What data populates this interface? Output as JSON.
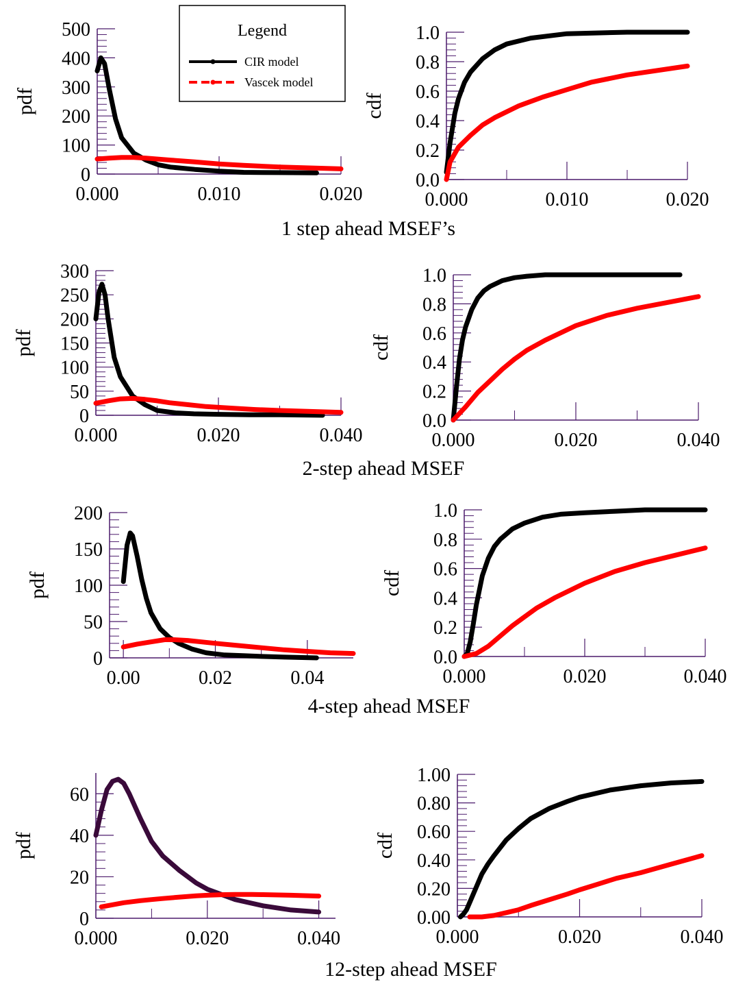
{
  "legend": {
    "title": "Legend",
    "entries": [
      {
        "label": "CIR model",
        "color": "#000000",
        "style": "solid"
      },
      {
        "label": "Vascek model",
        "color": "#ff0000",
        "style": "dashed"
      }
    ]
  },
  "row_labels": [
    "1 step ahead MSEF’s",
    "2-step ahead MSEF",
    "4-step ahead MSEF",
    "12-step ahead MSEF"
  ],
  "colors": {
    "cir": "#000000",
    "cir_12step": "#3a0a3a",
    "vasicek": "#ff0000",
    "axis": "#4b1a6b"
  },
  "chart_data": [
    {
      "type": "line",
      "ylabel": "pdf",
      "xlim": [
        0,
        0.02
      ],
      "ylim": [
        0,
        500
      ],
      "xticks": [
        "0.000",
        "0.010",
        "0.020"
      ],
      "xtick_values": [
        0,
        0.01,
        0.02
      ],
      "yticks": [
        "0",
        "100",
        "200",
        "300",
        "400",
        "500"
      ],
      "ytick_values": [
        0,
        100,
        200,
        300,
        400,
        500
      ],
      "series": [
        {
          "name": "CIR model",
          "x": [
            0,
            0.0003,
            0.0006,
            0.001,
            0.0015,
            0.002,
            0.003,
            0.004,
            0.005,
            0.006,
            0.008,
            0.01,
            0.012,
            0.015,
            0.018
          ],
          "y": [
            355,
            400,
            380,
            290,
            190,
            125,
            72,
            48,
            32,
            24,
            16,
            10,
            6,
            5,
            4
          ]
        },
        {
          "name": "Vascek model",
          "x": [
            0,
            0.001,
            0.002,
            0.003,
            0.004,
            0.006,
            0.008,
            0.01,
            0.012,
            0.015,
            0.02
          ],
          "y": [
            52,
            55,
            57,
            57,
            55,
            48,
            42,
            35,
            30,
            24,
            18
          ]
        }
      ]
    },
    {
      "type": "line",
      "ylabel": "cdf",
      "xlim": [
        0,
        0.02
      ],
      "ylim": [
        0,
        1
      ],
      "xticks": [
        "0.000",
        "0.010",
        "0.020"
      ],
      "xtick_values": [
        0,
        0.01,
        0.02
      ],
      "yticks": [
        "0.0",
        "0.2",
        "0.4",
        "0.6",
        "0.8",
        "1.0"
      ],
      "ytick_values": [
        0,
        0.2,
        0.4,
        0.6,
        0.8,
        1.0
      ],
      "series": [
        {
          "name": "CIR model",
          "x": [
            0,
            0.0003,
            0.0007,
            0.001,
            0.0015,
            0.002,
            0.003,
            0.004,
            0.005,
            0.007,
            0.01,
            0.015,
            0.02
          ],
          "y": [
            0.05,
            0.25,
            0.45,
            0.55,
            0.66,
            0.73,
            0.82,
            0.88,
            0.92,
            0.96,
            0.99,
            1.0,
            1.0
          ]
        },
        {
          "name": "Vascek model",
          "x": [
            0,
            0.0003,
            0.001,
            0.002,
            0.003,
            0.004,
            0.006,
            0.008,
            0.01,
            0.012,
            0.015,
            0.02
          ],
          "y": [
            0.0,
            0.12,
            0.22,
            0.3,
            0.37,
            0.42,
            0.5,
            0.56,
            0.61,
            0.66,
            0.71,
            0.77
          ]
        }
      ]
    },
    {
      "type": "line",
      "ylabel": "pdf",
      "xlim": [
        0,
        0.04
      ],
      "ylim": [
        0,
        300
      ],
      "xticks": [
        "0.000",
        "0.020",
        "0.040"
      ],
      "xtick_values": [
        0,
        0.02,
        0.04
      ],
      "yticks": [
        "0",
        "50",
        "100",
        "150",
        "200",
        "250",
        "300"
      ],
      "ytick_values": [
        0,
        50,
        100,
        150,
        200,
        250,
        300
      ],
      "series": [
        {
          "name": "CIR model",
          "x": [
            0,
            0.0005,
            0.001,
            0.0015,
            0.002,
            0.003,
            0.004,
            0.006,
            0.008,
            0.01,
            0.013,
            0.016,
            0.02,
            0.025,
            0.03,
            0.037
          ],
          "y": [
            200,
            255,
            272,
            250,
            200,
            120,
            80,
            40,
            22,
            10,
            5,
            3,
            2,
            1,
            1,
            0
          ]
        },
        {
          "name": "Vascek model",
          "x": [
            0,
            0.002,
            0.004,
            0.006,
            0.008,
            0.01,
            0.012,
            0.015,
            0.018,
            0.022,
            0.026,
            0.03,
            0.035,
            0.04
          ],
          "y": [
            25,
            30,
            34,
            35,
            33,
            30,
            26,
            22,
            18,
            15,
            12,
            10,
            8,
            6
          ]
        }
      ]
    },
    {
      "type": "line",
      "ylabel": "cdf",
      "xlim": [
        0,
        0.04
      ],
      "ylim": [
        0,
        1
      ],
      "xticks": [
        "0.000",
        "0.020",
        "0.040"
      ],
      "xtick_values": [
        0,
        0.02,
        0.04
      ],
      "yticks": [
        "0.0",
        "0.2",
        "0.4",
        "0.6",
        "0.8",
        "1.0"
      ],
      "ytick_values": [
        0,
        0.2,
        0.4,
        0.6,
        0.8,
        1.0
      ],
      "series": [
        {
          "name": "CIR model",
          "x": [
            0,
            0.0005,
            0.001,
            0.0015,
            0.002,
            0.003,
            0.004,
            0.005,
            0.006,
            0.008,
            0.01,
            0.012,
            0.015,
            0.02,
            0.025,
            0.037
          ],
          "y": [
            0.0,
            0.22,
            0.42,
            0.55,
            0.64,
            0.76,
            0.84,
            0.89,
            0.92,
            0.96,
            0.98,
            0.99,
            1.0,
            1.0,
            1.0,
            1.0
          ]
        },
        {
          "name": "Vascek model",
          "x": [
            0,
            0.002,
            0.004,
            0.006,
            0.008,
            0.01,
            0.012,
            0.015,
            0.018,
            0.02,
            0.025,
            0.03,
            0.035,
            0.04
          ],
          "y": [
            0.0,
            0.09,
            0.19,
            0.27,
            0.35,
            0.42,
            0.48,
            0.55,
            0.61,
            0.65,
            0.72,
            0.77,
            0.81,
            0.85
          ]
        }
      ]
    },
    {
      "type": "line",
      "ylabel": "pdf",
      "xlim": [
        -0.003,
        0.05
      ],
      "ylim": [
        0,
        200
      ],
      "xticks": [
        "0.00",
        "0.02",
        "0.04"
      ],
      "xtick_values": [
        0,
        0.02,
        0.04
      ],
      "yticks": [
        "0",
        "50",
        "100",
        "150",
        "200"
      ],
      "ytick_values": [
        0,
        50,
        100,
        150,
        200
      ],
      "series": [
        {
          "name": "CIR model",
          "x": [
            0,
            0.0008,
            0.0015,
            0.002,
            0.003,
            0.004,
            0.005,
            0.006,
            0.008,
            0.01,
            0.012,
            0.015,
            0.018,
            0.022,
            0.026,
            0.03,
            0.035,
            0.042
          ],
          "y": [
            105,
            155,
            172,
            168,
            140,
            108,
            82,
            62,
            40,
            28,
            20,
            12,
            7,
            4,
            3,
            2,
            1,
            0
          ]
        },
        {
          "name": "Vascek model",
          "x": [
            0,
            0.003,
            0.006,
            0.009,
            0.011,
            0.014,
            0.017,
            0.02,
            0.025,
            0.03,
            0.035,
            0.04,
            0.045,
            0.05
          ],
          "y": [
            15,
            19,
            22,
            25,
            25,
            24,
            22,
            20,
            17,
            14,
            11,
            9,
            7,
            6
          ]
        }
      ]
    },
    {
      "type": "line",
      "ylabel": "cdf",
      "xlim": [
        0,
        0.04
      ],
      "ylim": [
        0,
        1
      ],
      "xticks": [
        "0.000",
        "0.020",
        "0.040"
      ],
      "xtick_values": [
        0,
        0.02,
        0.04
      ],
      "yticks": [
        "0.0",
        "0.2",
        "0.4",
        "0.6",
        "0.8",
        "1.0"
      ],
      "ytick_values": [
        0,
        0.2,
        0.4,
        0.6,
        0.8,
        1.0
      ],
      "series": [
        {
          "name": "CIR model",
          "x": [
            0,
            0.0005,
            0.001,
            0.0015,
            0.002,
            0.003,
            0.004,
            0.005,
            0.006,
            0.008,
            0.01,
            0.013,
            0.016,
            0.02,
            0.025,
            0.03,
            0.04
          ],
          "y": [
            0.0,
            0.02,
            0.1,
            0.22,
            0.35,
            0.55,
            0.67,
            0.75,
            0.8,
            0.87,
            0.91,
            0.95,
            0.97,
            0.98,
            0.99,
            1.0,
            1.0
          ]
        },
        {
          "name": "Vascek model",
          "x": [
            0,
            0.002,
            0.004,
            0.006,
            0.008,
            0.01,
            0.012,
            0.015,
            0.02,
            0.025,
            0.03,
            0.035,
            0.04
          ],
          "y": [
            0.0,
            0.02,
            0.07,
            0.14,
            0.21,
            0.27,
            0.33,
            0.4,
            0.5,
            0.58,
            0.64,
            0.69,
            0.74
          ]
        }
      ]
    },
    {
      "type": "line",
      "ylabel": "pdf",
      "xlim": [
        0,
        0.043
      ],
      "ylim": [
        0,
        70
      ],
      "xticks": [
        "0.000",
        "0.020",
        "0.040"
      ],
      "xtick_values": [
        0,
        0.02,
        0.04
      ],
      "yticks": [
        "0",
        "20",
        "40",
        "60"
      ],
      "ytick_values": [
        0,
        20,
        40,
        60
      ],
      "series": [
        {
          "name": "CIR model",
          "x": [
            0,
            0.001,
            0.002,
            0.003,
            0.004,
            0.005,
            0.006,
            0.008,
            0.01,
            0.012,
            0.015,
            0.018,
            0.02,
            0.022,
            0.025,
            0.03,
            0.035,
            0.04
          ],
          "y": [
            40,
            52,
            62,
            66,
            67,
            65,
            60,
            48,
            37,
            30,
            23,
            17,
            14,
            12,
            9,
            6,
            4,
            3
          ]
        },
        {
          "name": "Vascek model",
          "x": [
            0.001,
            0.003,
            0.005,
            0.008,
            0.01,
            0.012,
            0.015,
            0.018,
            0.02,
            0.023,
            0.025,
            0.028,
            0.03,
            0.035,
            0.04
          ],
          "y": [
            5.5,
            6.5,
            7.5,
            8.5,
            9,
            9.5,
            10.2,
            10.8,
            11.1,
            11.4,
            11.5,
            11.5,
            11.4,
            11.1,
            10.7
          ]
        }
      ]
    },
    {
      "type": "line",
      "ylabel": "cdf",
      "xlim": [
        0,
        0.04
      ],
      "ylim": [
        0,
        1
      ],
      "xticks": [
        "0.000",
        "0.020",
        "0.040"
      ],
      "xtick_values": [
        0,
        0.02,
        0.04
      ],
      "yticks": [
        "0.00",
        "0.20",
        "0.40",
        "0.60",
        "0.80",
        "1.00"
      ],
      "ytick_values": [
        0,
        0.2,
        0.4,
        0.6,
        0.8,
        1.0
      ],
      "series": [
        {
          "name": "CIR model",
          "x": [
            0.0005,
            0.001,
            0.0015,
            0.002,
            0.003,
            0.004,
            0.005,
            0.006,
            0.008,
            0.01,
            0.012,
            0.015,
            0.018,
            0.02,
            0.025,
            0.03,
            0.035,
            0.04
          ],
          "y": [
            0.0,
            0.02,
            0.05,
            0.1,
            0.2,
            0.3,
            0.37,
            0.43,
            0.54,
            0.62,
            0.69,
            0.76,
            0.81,
            0.84,
            0.89,
            0.92,
            0.94,
            0.95
          ]
        },
        {
          "name": "Vascek model",
          "x": [
            0.002,
            0.004,
            0.006,
            0.008,
            0.01,
            0.012,
            0.015,
            0.018,
            0.02,
            0.023,
            0.026,
            0.03,
            0.035,
            0.04
          ],
          "y": [
            0.0,
            0.0,
            0.01,
            0.03,
            0.05,
            0.08,
            0.12,
            0.16,
            0.19,
            0.23,
            0.27,
            0.31,
            0.37,
            0.43
          ]
        }
      ]
    }
  ]
}
